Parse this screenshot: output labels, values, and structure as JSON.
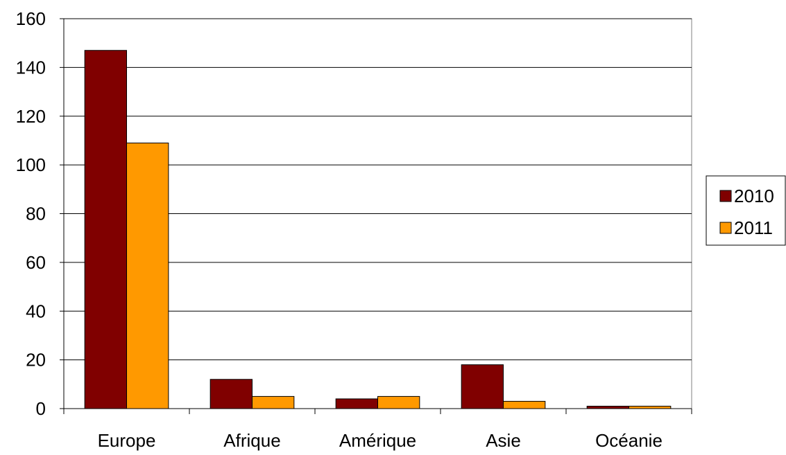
{
  "chart_data": {
    "type": "bar",
    "title": "",
    "xlabel": "",
    "ylabel": "",
    "categories": [
      "Europe",
      "Afrique",
      "Amérique",
      "Asie",
      "Océanie"
    ],
    "series": [
      {
        "name": "2010",
        "values": [
          147,
          12,
          4,
          18,
          1
        ],
        "color": "#800000"
      },
      {
        "name": "2011",
        "values": [
          109,
          5,
          5,
          3,
          1
        ],
        "color": "#FF9900"
      }
    ],
    "ylim": [
      0,
      160
    ],
    "yticks": [
      0,
      20,
      40,
      60,
      80,
      100,
      120,
      140,
      160
    ],
    "grid": true,
    "legend_position": "right",
    "bar_border_color": "#000000"
  }
}
